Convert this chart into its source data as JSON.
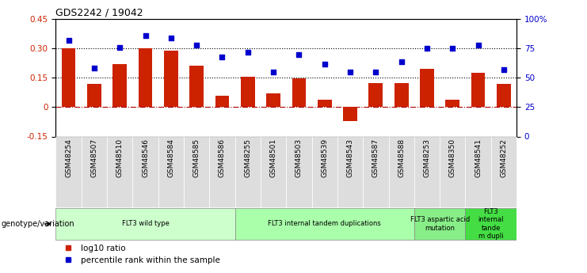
{
  "title": "GDS2242 / 19042",
  "samples": [
    "GSM48254",
    "GSM48507",
    "GSM48510",
    "GSM48546",
    "GSM48584",
    "GSM48585",
    "GSM48586",
    "GSM48255",
    "GSM48501",
    "GSM48503",
    "GSM48539",
    "GSM48543",
    "GSM48587",
    "GSM48588",
    "GSM48253",
    "GSM48350",
    "GSM48541",
    "GSM48252"
  ],
  "log10_ratio": [
    0.3,
    0.12,
    0.22,
    0.3,
    0.29,
    0.21,
    0.06,
    0.155,
    0.07,
    0.148,
    0.04,
    -0.07,
    0.125,
    0.125,
    0.195,
    0.04,
    0.175,
    0.12
  ],
  "percentile_rank": [
    82,
    58,
    76,
    86,
    84,
    78,
    68,
    72,
    55,
    70,
    62,
    55,
    55,
    64,
    75,
    75,
    78,
    57
  ],
  "ylim_left": [
    -0.15,
    0.45
  ],
  "ylim_right": [
    0,
    100
  ],
  "yticks_left": [
    -0.15,
    0.0,
    0.15,
    0.3,
    0.45
  ],
  "ytick_left_labels": [
    "-0.15",
    "0",
    "0.15",
    "0.30",
    "0.45"
  ],
  "yticks_right": [
    0,
    25,
    50,
    75,
    100
  ],
  "ytick_right_labels": [
    "0",
    "25",
    "50",
    "75",
    "100%"
  ],
  "hlines": [
    0.0,
    0.15,
    0.3
  ],
  "hline_styles": [
    "dashdot",
    "dotted",
    "dotted"
  ],
  "hline_colors": [
    "#AA0000",
    "black",
    "black"
  ],
  "bar_color": "#CC2200",
  "scatter_color": "#0000CC",
  "groups": [
    {
      "label": "FLT3 wild type",
      "start": 0,
      "end": 7,
      "color": "#CCFFCC"
    },
    {
      "label": "FLT3 internal tandem duplications",
      "start": 7,
      "end": 14,
      "color": "#AAFFAA"
    },
    {
      "label": "FLT3 aspartic acid\nmutation",
      "start": 14,
      "end": 16,
      "color": "#88EE88"
    },
    {
      "label": "FLT3\ninternal\ntande\nm dupli",
      "start": 16,
      "end": 18,
      "color": "#44DD44"
    }
  ],
  "legend_items": [
    {
      "label": "log10 ratio",
      "color": "#CC2200",
      "marker": "s"
    },
    {
      "label": "percentile rank within the sample",
      "color": "#0000CC",
      "marker": "s"
    }
  ],
  "xlabel_text": "genotype/variation"
}
